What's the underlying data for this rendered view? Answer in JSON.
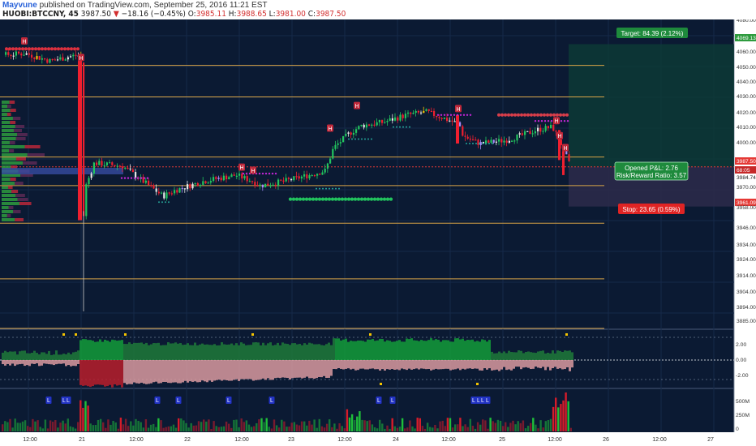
{
  "header": {
    "author": "Mayvune",
    "published_text": "published on TradingView.com, September 25, 2016 11:21 EST",
    "symbol": "HUOBI:BTCCNY, 45",
    "last": "3987.50",
    "change": "−18.16 (−0.45%)",
    "open_label": "O:",
    "open": "3985.11",
    "high_label": "H:",
    "high": "3988.65",
    "low_label": "L:",
    "low": "3981.00",
    "close_label": "C:",
    "close": "3987.50"
  },
  "colors": {
    "bg": "#0b1a33",
    "axis_bg": "#ffffff",
    "grid": "#16294a",
    "up": "#22c55e",
    "down": "#ef1f2f",
    "level": "#d9a447",
    "target_zone": "#0d3a36",
    "stop_zone": "#2a2a49"
  },
  "price_axis": {
    "ticks": [
      "4080.00",
      "4069.13",
      "4060.00",
      "4050.00",
      "4040.00",
      "4030.00",
      "4020.00",
      "4010.00",
      "4000.00",
      "3987.50",
      "68:05",
      "3984.74",
      "3970.00",
      "3961.09",
      "3958.00",
      "3946.00",
      "3934.00",
      "3924.00",
      "3914.00",
      "3904.00",
      "3894.00",
      "3885.00"
    ]
  },
  "osc_axis": {
    "ticks": [
      "2.00",
      "0.00",
      "-2.00"
    ]
  },
  "vol_axis": {
    "ticks": [
      "500M",
      "250M",
      "0"
    ]
  },
  "time_axis": {
    "ticks": [
      "12:00",
      "21",
      "12:00",
      "22",
      "12:00",
      "23",
      "12:00",
      "24",
      "12:00",
      "25",
      "12:00",
      "26",
      "12:00",
      "27"
    ]
  },
  "position": {
    "target_label": "Target: 84.39 (2.12%)",
    "stop_label": "Stop: 23.65 (0.59%)",
    "pnl_label": "Opened P&L: 2.76",
    "rr_label": "Risk/Reward Ratio: 3.57"
  },
  "markers": {
    "high": "H",
    "low": "L"
  },
  "chart_data": {
    "type": "candlestick",
    "price_range": [
      3880,
      4085
    ],
    "levels": [
      4055,
      4034,
      3994,
      3975,
      3950,
      3913,
      3880
    ],
    "entry": 3987.5,
    "target": 4069.13,
    "stop": 3961.09
  }
}
